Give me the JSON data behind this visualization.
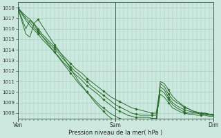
{
  "title": "",
  "xlabel": "Pression niveau de la mer( hPa )",
  "ylabel": "",
  "bg_color": "#cce8df",
  "grid_color": "#99ccbb",
  "line_color": "#2d6e2d",
  "marker_color": "#2d6e2d",
  "ylim": [
    1007.5,
    1018.5
  ],
  "xlim": [
    0,
    48
  ],
  "xticks": [
    0,
    24,
    48
  ],
  "xticklabels": [
    "Ven",
    "Sam",
    "Dim"
  ],
  "yticks": [
    1008,
    1009,
    1010,
    1011,
    1012,
    1013,
    1014,
    1015,
    1016,
    1017,
    1018
  ],
  "series": [
    {
      "x": [
        0,
        2,
        3,
        4,
        5,
        6,
        7,
        8,
        9,
        10,
        11,
        12,
        13,
        14,
        15,
        16,
        17,
        18,
        19,
        20,
        21,
        22,
        23,
        24,
        25,
        26,
        27,
        28,
        29,
        30,
        31,
        32,
        33,
        34,
        35,
        36,
        37,
        38,
        39,
        40,
        41,
        42,
        43,
        44,
        45,
        46,
        47,
        48
      ],
      "y": [
        1018,
        1017.2,
        1016.9,
        1016.5,
        1016.0,
        1015.5,
        1015.1,
        1014.7,
        1014.3,
        1013.9,
        1013.5,
        1013.1,
        1012.7,
        1012.3,
        1012.0,
        1011.7,
        1011.3,
        1011.0,
        1010.7,
        1010.4,
        1010.1,
        1009.8,
        1009.5,
        1009.3,
        1009.1,
        1008.9,
        1008.7,
        1008.5,
        1008.4,
        1008.3,
        1008.2,
        1008.1,
        1008.0,
        1008.0,
        1010.5,
        1010.2,
        1009.5,
        1009.0,
        1008.7,
        1008.5,
        1008.3,
        1008.2,
        1008.1,
        1008.0,
        1008.0,
        1008.0,
        1007.9,
        1007.9
      ]
    },
    {
      "x": [
        0,
        2,
        3,
        4,
        5,
        6,
        7,
        8,
        9,
        10,
        11,
        12,
        13,
        14,
        15,
        16,
        17,
        18,
        19,
        20,
        21,
        22,
        23,
        24,
        25,
        26,
        27,
        28,
        29,
        30,
        31,
        32,
        33,
        34,
        35,
        36,
        37,
        38,
        39,
        40,
        41,
        42,
        43,
        44,
        45,
        46,
        47,
        48
      ],
      "y": [
        1018,
        1017.0,
        1016.6,
        1016.1,
        1015.7,
        1015.3,
        1014.9,
        1014.5,
        1014.1,
        1013.7,
        1013.2,
        1012.8,
        1012.4,
        1012.0,
        1011.7,
        1011.3,
        1011.0,
        1010.6,
        1010.3,
        1010.0,
        1009.7,
        1009.4,
        1009.1,
        1008.8,
        1008.6,
        1008.4,
        1008.2,
        1008.0,
        1007.9,
        1007.8,
        1007.8,
        1007.8,
        1007.8,
        1007.8,
        1010.2,
        1009.9,
        1009.3,
        1008.8,
        1008.5,
        1008.3,
        1008.1,
        1008.0,
        1008.0,
        1008.0,
        1007.9,
        1007.9,
        1007.8,
        1007.8
      ]
    },
    {
      "x": [
        0,
        2,
        3,
        4,
        5,
        6,
        7,
        8,
        9,
        10,
        11,
        12,
        13,
        14,
        15,
        16,
        17,
        18,
        19,
        20,
        21,
        22,
        23,
        24,
        25,
        26,
        27,
        28,
        29,
        30,
        31,
        32,
        33,
        34,
        35,
        36,
        37,
        38,
        39,
        40,
        41,
        42,
        43,
        44,
        45,
        46,
        47,
        48
      ],
      "y": [
        1018,
        1016.8,
        1016.3,
        1015.9,
        1015.5,
        1015.0,
        1014.6,
        1014.2,
        1013.8,
        1013.4,
        1012.9,
        1012.5,
        1012.1,
        1011.7,
        1011.4,
        1011.0,
        1010.6,
        1010.3,
        1010.0,
        1009.7,
        1009.3,
        1009.0,
        1008.7,
        1008.4,
        1008.2,
        1008.0,
        1007.8,
        1007.7,
        1007.6,
        1007.6,
        1007.6,
        1007.6,
        1007.5,
        1007.5,
        1009.8,
        1009.5,
        1009.0,
        1008.5,
        1008.3,
        1008.1,
        1008.0,
        1007.9,
        1007.9,
        1007.8,
        1007.8,
        1007.8,
        1007.7,
        1007.7
      ]
    },
    {
      "x": [
        0,
        2,
        3,
        4,
        5,
        6,
        7,
        8,
        9,
        10,
        11,
        12,
        13,
        14,
        15,
        16,
        17,
        18,
        19,
        20,
        21,
        22,
        23,
        24,
        25,
        26,
        27,
        28,
        29,
        30,
        31,
        32,
        33,
        34,
        35,
        36,
        37,
        38,
        39,
        40,
        41,
        42,
        43,
        44,
        45,
        46,
        47,
        48
      ],
      "y": [
        1018,
        1016.0,
        1016.8,
        1016.4,
        1015.8,
        1015.3,
        1014.8,
        1014.3,
        1013.8,
        1013.3,
        1012.8,
        1012.3,
        1011.8,
        1011.3,
        1010.8,
        1010.4,
        1010.0,
        1009.6,
        1009.2,
        1008.8,
        1008.5,
        1008.2,
        1007.9,
        1007.7,
        1007.5,
        1007.4,
        1007.3,
        1007.2,
        1007.2,
        1007.1,
        1007.1,
        1007.1,
        1007.1,
        1007.1,
        1010.8,
        1010.5,
        1009.8,
        1009.3,
        1009.0,
        1008.8,
        1008.5,
        1008.4,
        1008.2,
        1008.1,
        1008.0,
        1008.0,
        1007.9,
        1007.8
      ]
    },
    {
      "x": [
        0,
        2,
        3,
        4,
        5,
        6,
        7,
        8,
        9,
        10,
        11,
        12,
        13,
        14,
        15,
        16,
        17,
        18,
        19,
        20,
        21,
        22,
        23,
        24,
        25,
        26,
        27,
        28,
        29,
        30,
        31,
        32,
        33,
        34,
        35,
        36,
        37,
        38,
        39,
        40,
        41,
        42,
        43,
        44,
        45,
        46,
        47,
        48
      ],
      "y": [
        1018,
        1015.5,
        1015.2,
        1016.5,
        1016.9,
        1016.3,
        1015.7,
        1015.1,
        1014.5,
        1014.0,
        1013.4,
        1012.8,
        1012.2,
        1011.6,
        1011.0,
        1010.5,
        1010.0,
        1009.5,
        1009.0,
        1008.6,
        1008.2,
        1007.8,
        1007.5,
        1007.3,
        1007.1,
        1007.0,
        1006.9,
        1006.9,
        1006.8,
        1006.8,
        1006.8,
        1006.8,
        1006.8,
        1006.8,
        1011.0,
        1010.8,
        1010.2,
        1009.6,
        1009.2,
        1008.9,
        1008.6,
        1008.4,
        1008.2,
        1008.1,
        1008.0,
        1007.9,
        1007.9,
        1007.8
      ]
    }
  ],
  "marker_x_indices": [
    0,
    4,
    8,
    12,
    16,
    20,
    24,
    28,
    32,
    36,
    40,
    44,
    48
  ]
}
